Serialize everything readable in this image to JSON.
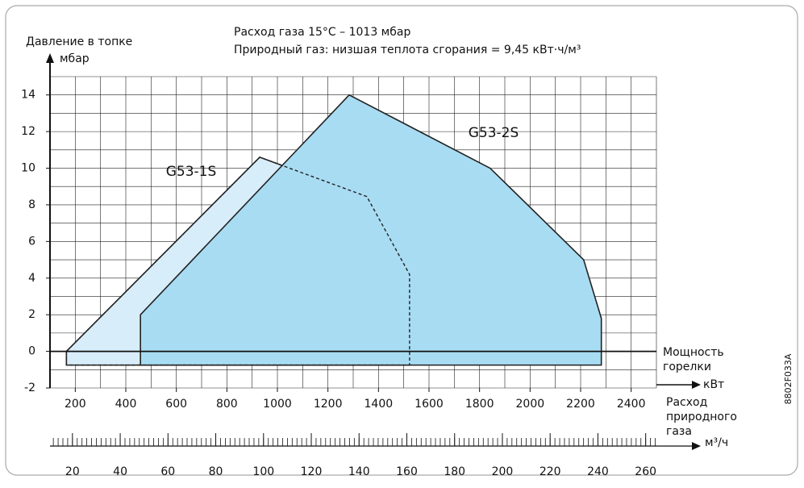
{
  "chart_data": {
    "type": "polygon",
    "y_label": "Давление в топке",
    "y_unit": "мбар",
    "notes": [
      "Расход газа 15°C – 1013 мбар",
      "Природный газ:  низшая теплота сгорания = 9,45 кВт·ч/м³"
    ],
    "x_label": [
      "Мощность",
      "горелки"
    ],
    "x_unit": "кВт",
    "x2_label": [
      "Расход",
      "природного",
      "газа"
    ],
    "x2_unit": "м³/ч",
    "code": "8802F033A",
    "xlim": [
      100,
      2500
    ],
    "xticks": [
      200,
      400,
      600,
      800,
      1000,
      1200,
      1400,
      1600,
      1800,
      2000,
      2200,
      2400
    ],
    "xgrid_step": 100,
    "ylim": [
      -2,
      15
    ],
    "yticks": [
      -2,
      0,
      2,
      4,
      6,
      8,
      10,
      12,
      14
    ],
    "ygrid_step": 1,
    "x2lim": [
      10.6,
      264.5
    ],
    "x2ticks": [
      20,
      40,
      60,
      80,
      100,
      120,
      140,
      160,
      180,
      200,
      220,
      240,
      260
    ],
    "x2minor_step": 2,
    "grid": true,
    "series": [
      {
        "name": "G53-1S",
        "color": "#d7edf9",
        "x": [
          165,
          165,
          1523,
          1523,
          1354,
          930
        ],
        "values": [
          0,
          -0.75,
          -0.75,
          4.2,
          8.45,
          10.6
        ]
      },
      {
        "name": "G53-2S",
        "color": "#a8dcf3",
        "x": [
          458,
          458,
          1284,
          1842,
          2212,
          2282,
          2282
        ],
        "values": [
          -0.75,
          2,
          14,
          10,
          5,
          1.8,
          -0.75
        ]
      }
    ]
  }
}
